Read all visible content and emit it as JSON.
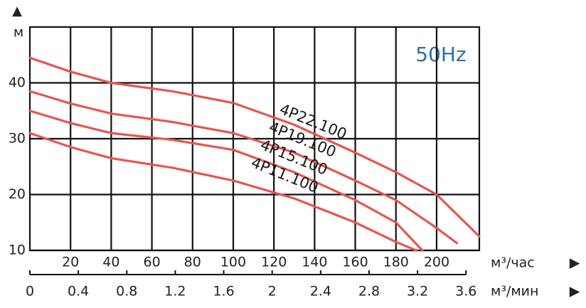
{
  "chart_data": {
    "type": "line",
    "y_label": "м",
    "x_label": "м³/час",
    "x2_label": "м³/мин",
    "annotation": "50Hz",
    "xlim": [
      0,
      221
    ],
    "xticks": [
      20,
      40,
      60,
      80,
      100,
      120,
      140,
      160,
      180,
      200
    ],
    "x2lim": [
      0,
      3.71
    ],
    "x2ticks": [
      0,
      0.4,
      0.8,
      1.2,
      1.6,
      2.0,
      2.4,
      2.8,
      3.2,
      3.6
    ],
    "ylim": [
      10,
      50
    ],
    "yticks": [
      10,
      20,
      30,
      40
    ],
    "grid": true,
    "series": [
      {
        "name": "4P22.100",
        "color": "#e8554e",
        "x": [
          0,
          20,
          40,
          70,
          100,
          130,
          160,
          180,
          200,
          221
        ],
        "values": [
          44.5,
          42,
          40,
          38.5,
          36.4,
          32.5,
          27.5,
          24,
          20,
          12.5
        ]
      },
      {
        "name": "4P19.100",
        "color": "#e8554e",
        "x": [
          0,
          20,
          40,
          70,
          100,
          130,
          160,
          180,
          200,
          210
        ],
        "values": [
          38.5,
          36.3,
          34.5,
          33,
          31,
          27.5,
          22.5,
          19,
          14,
          11.3
        ]
      },
      {
        "name": "4P15.100",
        "color": "#e8554e",
        "x": [
          0,
          20,
          40,
          70,
          100,
          130,
          160,
          180,
          193
        ],
        "values": [
          35,
          32.8,
          31,
          29.8,
          28,
          24,
          19,
          15,
          10
        ]
      },
      {
        "name": "4P11.100",
        "color": "#e8554e",
        "x": [
          0,
          20,
          40,
          70,
          100,
          130,
          160,
          180,
          190
        ],
        "values": [
          31,
          28.5,
          26.5,
          24.8,
          22.5,
          19.3,
          15,
          11.5,
          10
        ]
      }
    ]
  }
}
